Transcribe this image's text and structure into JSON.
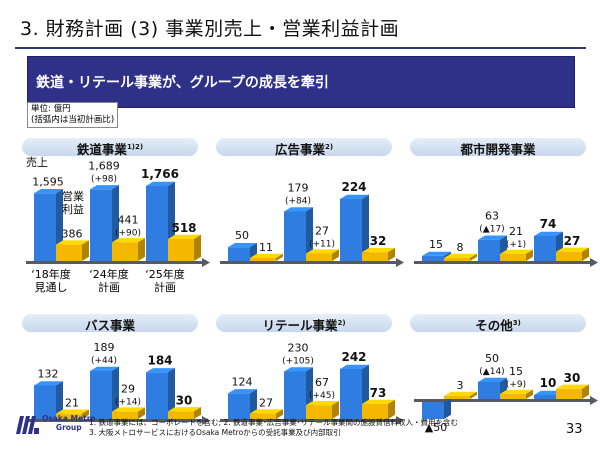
{
  "header": {
    "title": "3. 財務計画 (3) 事業別売上・営業利益計画",
    "banner": "鉄道・リテール事業が、グループの成長を牽引"
  },
  "unit_note": {
    "line1": "単位: 億円",
    "line2": "(括弧内は当初計画比)"
  },
  "x_labels": [
    {
      "line1": "‘18年度",
      "line2": "見通し"
    },
    {
      "line1": "‘24年度",
      "line2": "計画"
    },
    {
      "line1": "‘25年度",
      "line2": "計画"
    }
  ],
  "railway_annotations": {
    "sales_label": "売上",
    "op_label_1": "営業",
    "op_label_2": "利益"
  },
  "colors": {
    "sales": "#2f7de0",
    "operating_profit": "#f5b800",
    "banner": "#2e3187",
    "axis": "#555a66"
  },
  "chart_data": [
    {
      "type": "bar",
      "title": "鉄道事業",
      "note": "1)2)",
      "categories": [
        "'18年度見通し",
        "'24年度計画",
        "'25年度計画"
      ],
      "series": [
        {
          "name": "売上",
          "values": [
            1595,
            1689,
            1766
          ],
          "labels": [
            "1,595",
            "1,689",
            "1,766"
          ],
          "diffs": [
            "",
            "(+98)",
            ""
          ]
        },
        {
          "name": "営業利益",
          "values": [
            386,
            441,
            518
          ],
          "labels": [
            "386",
            "441",
            "518"
          ],
          "diffs": [
            "",
            "(+90)",
            ""
          ]
        }
      ]
    },
    {
      "type": "bar",
      "title": "広告事業",
      "note": "2)",
      "categories": [
        "'18年度見通し",
        "'24年度計画",
        "'25年度計画"
      ],
      "series": [
        {
          "name": "売上",
          "values": [
            50,
            179,
            224
          ],
          "labels": [
            "50",
            "179",
            "224"
          ],
          "diffs": [
            "",
            "(+84)",
            ""
          ]
        },
        {
          "name": "営業利益",
          "values": [
            11,
            27,
            32
          ],
          "labels": [
            "11",
            "27",
            "32"
          ],
          "diffs": [
            "",
            "(+11)",
            ""
          ]
        }
      ]
    },
    {
      "type": "bar",
      "title": "都市開発事業",
      "note": "",
      "categories": [
        "'18年度見通し",
        "'24年度計画",
        "'25年度計画"
      ],
      "series": [
        {
          "name": "売上",
          "values": [
            15,
            63,
            74
          ],
          "labels": [
            "15",
            "63",
            "74"
          ],
          "diffs": [
            "",
            "(▲17)",
            ""
          ]
        },
        {
          "name": "営業利益",
          "values": [
            8,
            21,
            27
          ],
          "labels": [
            "8",
            "21",
            "27"
          ],
          "diffs": [
            "",
            "(+1)",
            ""
          ]
        }
      ]
    },
    {
      "type": "bar",
      "title": "バス事業",
      "note": "",
      "categories": [
        "'18年度見通し",
        "'24年度計画",
        "'25年度計画"
      ],
      "series": [
        {
          "name": "売上",
          "values": [
            132,
            189,
            184
          ],
          "labels": [
            "132",
            "189",
            "184"
          ],
          "diffs": [
            "",
            "(+44)",
            ""
          ]
        },
        {
          "name": "営業利益",
          "values": [
            21,
            29,
            30
          ],
          "labels": [
            "21",
            "29",
            "30"
          ],
          "diffs": [
            "",
            "(+14)",
            ""
          ]
        }
      ]
    },
    {
      "type": "bar",
      "title": "リテール事業",
      "note": "2)",
      "categories": [
        "'18年度見通し",
        "'24年度計画",
        "'25年度計画"
      ],
      "series": [
        {
          "name": "売上",
          "values": [
            124,
            230,
            242
          ],
          "labels": [
            "124",
            "230",
            "242"
          ],
          "diffs": [
            "",
            "(+105)",
            ""
          ]
        },
        {
          "name": "営業利益",
          "values": [
            27,
            67,
            73
          ],
          "labels": [
            "27",
            "67",
            "73"
          ],
          "diffs": [
            "",
            "(+45)",
            ""
          ]
        }
      ]
    },
    {
      "type": "bar",
      "title": "その他",
      "note": "3)",
      "categories": [
        "'18年度見通し",
        "'24年度計画",
        "'25年度計画"
      ],
      "series": [
        {
          "name": "売上",
          "values": [
            -50,
            50,
            10
          ],
          "labels": [
            "▲50",
            "50",
            "10"
          ],
          "diffs": [
            "",
            "(▲14)",
            ""
          ]
        },
        {
          "name": "営業利益",
          "values": [
            3,
            15,
            30
          ],
          "labels": [
            "3",
            "15",
            "30"
          ],
          "diffs": [
            "",
            "(+9)",
            ""
          ]
        }
      ]
    }
  ],
  "footer": {
    "logo_line1": "Osaka Metro",
    "logo_line2": "Group",
    "note1": "1.  鉄道事業には、コーポレートを含む; 2. 鉄道事業･広告事業･リテール事業間の施設賃借料収入・費用を含む",
    "note2": "3. 大阪メトロサービスにおけるOsaka Metroからの受託事業及び内部取引",
    "page_number": "33"
  }
}
